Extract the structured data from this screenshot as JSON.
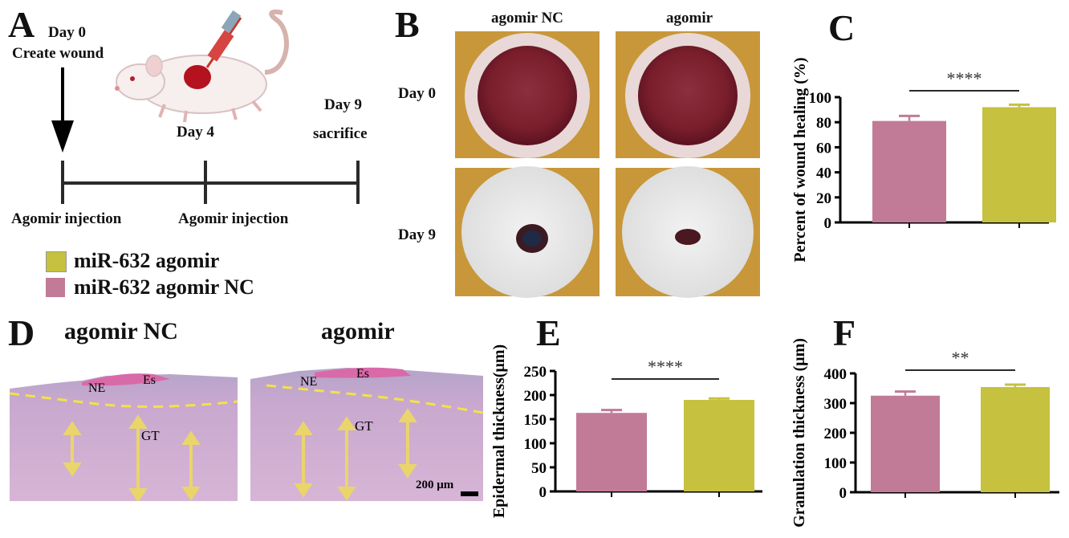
{
  "colors": {
    "nc": "#c17b97",
    "agomir": "#c6c13e",
    "bracket": "#2a2a2a",
    "arrow": "#ead56a",
    "dash": "#f2e24a"
  },
  "panel_a": {
    "letter": "A",
    "day0": "Day 0",
    "create_wound": "Create wound",
    "day4": "Day 4",
    "day9": "Day 9",
    "sacrifice": "sacrifice",
    "injection1": "Agomir injection",
    "injection2": "Agomir injection",
    "legend": [
      {
        "label": "miR-632 agomir",
        "color": "#c6c13e"
      },
      {
        "label": "miR-632 agomir NC",
        "color": "#c17b97"
      }
    ]
  },
  "panel_b": {
    "letter": "B",
    "col_nc": "agomir NC",
    "col_ag": "agomir",
    "row_day0": "Day 0",
    "row_day9": "Day 9"
  },
  "panel_d": {
    "letter": "D",
    "title_nc": "agomir NC",
    "title_ag": "agomir",
    "label_ne": "NE",
    "label_es": "Es",
    "label_gt": "GT",
    "scale_bar": "200 μm"
  },
  "chart_data": [
    {
      "panel": "C",
      "type": "bar",
      "categories": [
        "",
        ""
      ],
      "values": [
        81,
        92
      ],
      "errors": [
        4,
        2
      ],
      "ylabel": "Percent of wound healing (%)",
      "ylim": [
        0,
        100
      ],
      "yticks": [
        "0",
        "20",
        "40",
        "60",
        "80",
        "100"
      ],
      "significance": "****"
    },
    {
      "panel": "E",
      "type": "bar",
      "categories": [
        "",
        ""
      ],
      "values": [
        163,
        190
      ],
      "errors": [
        6,
        3
      ],
      "ylabel": "Epidermal thickness(μm)",
      "ylim": [
        0,
        250
      ],
      "yticks": [
        "0",
        "50",
        "100",
        "150",
        "200",
        "250"
      ],
      "significance": "****"
    },
    {
      "panel": "F",
      "type": "bar",
      "categories": [
        "",
        ""
      ],
      "values": [
        325,
        354
      ],
      "errors": [
        14,
        8
      ],
      "ylabel": "Granulation thickness (μm)",
      "ylim": [
        0,
        400
      ],
      "yticks": [
        "0",
        "100",
        "200",
        "300",
        "400"
      ],
      "significance": "**"
    }
  ]
}
